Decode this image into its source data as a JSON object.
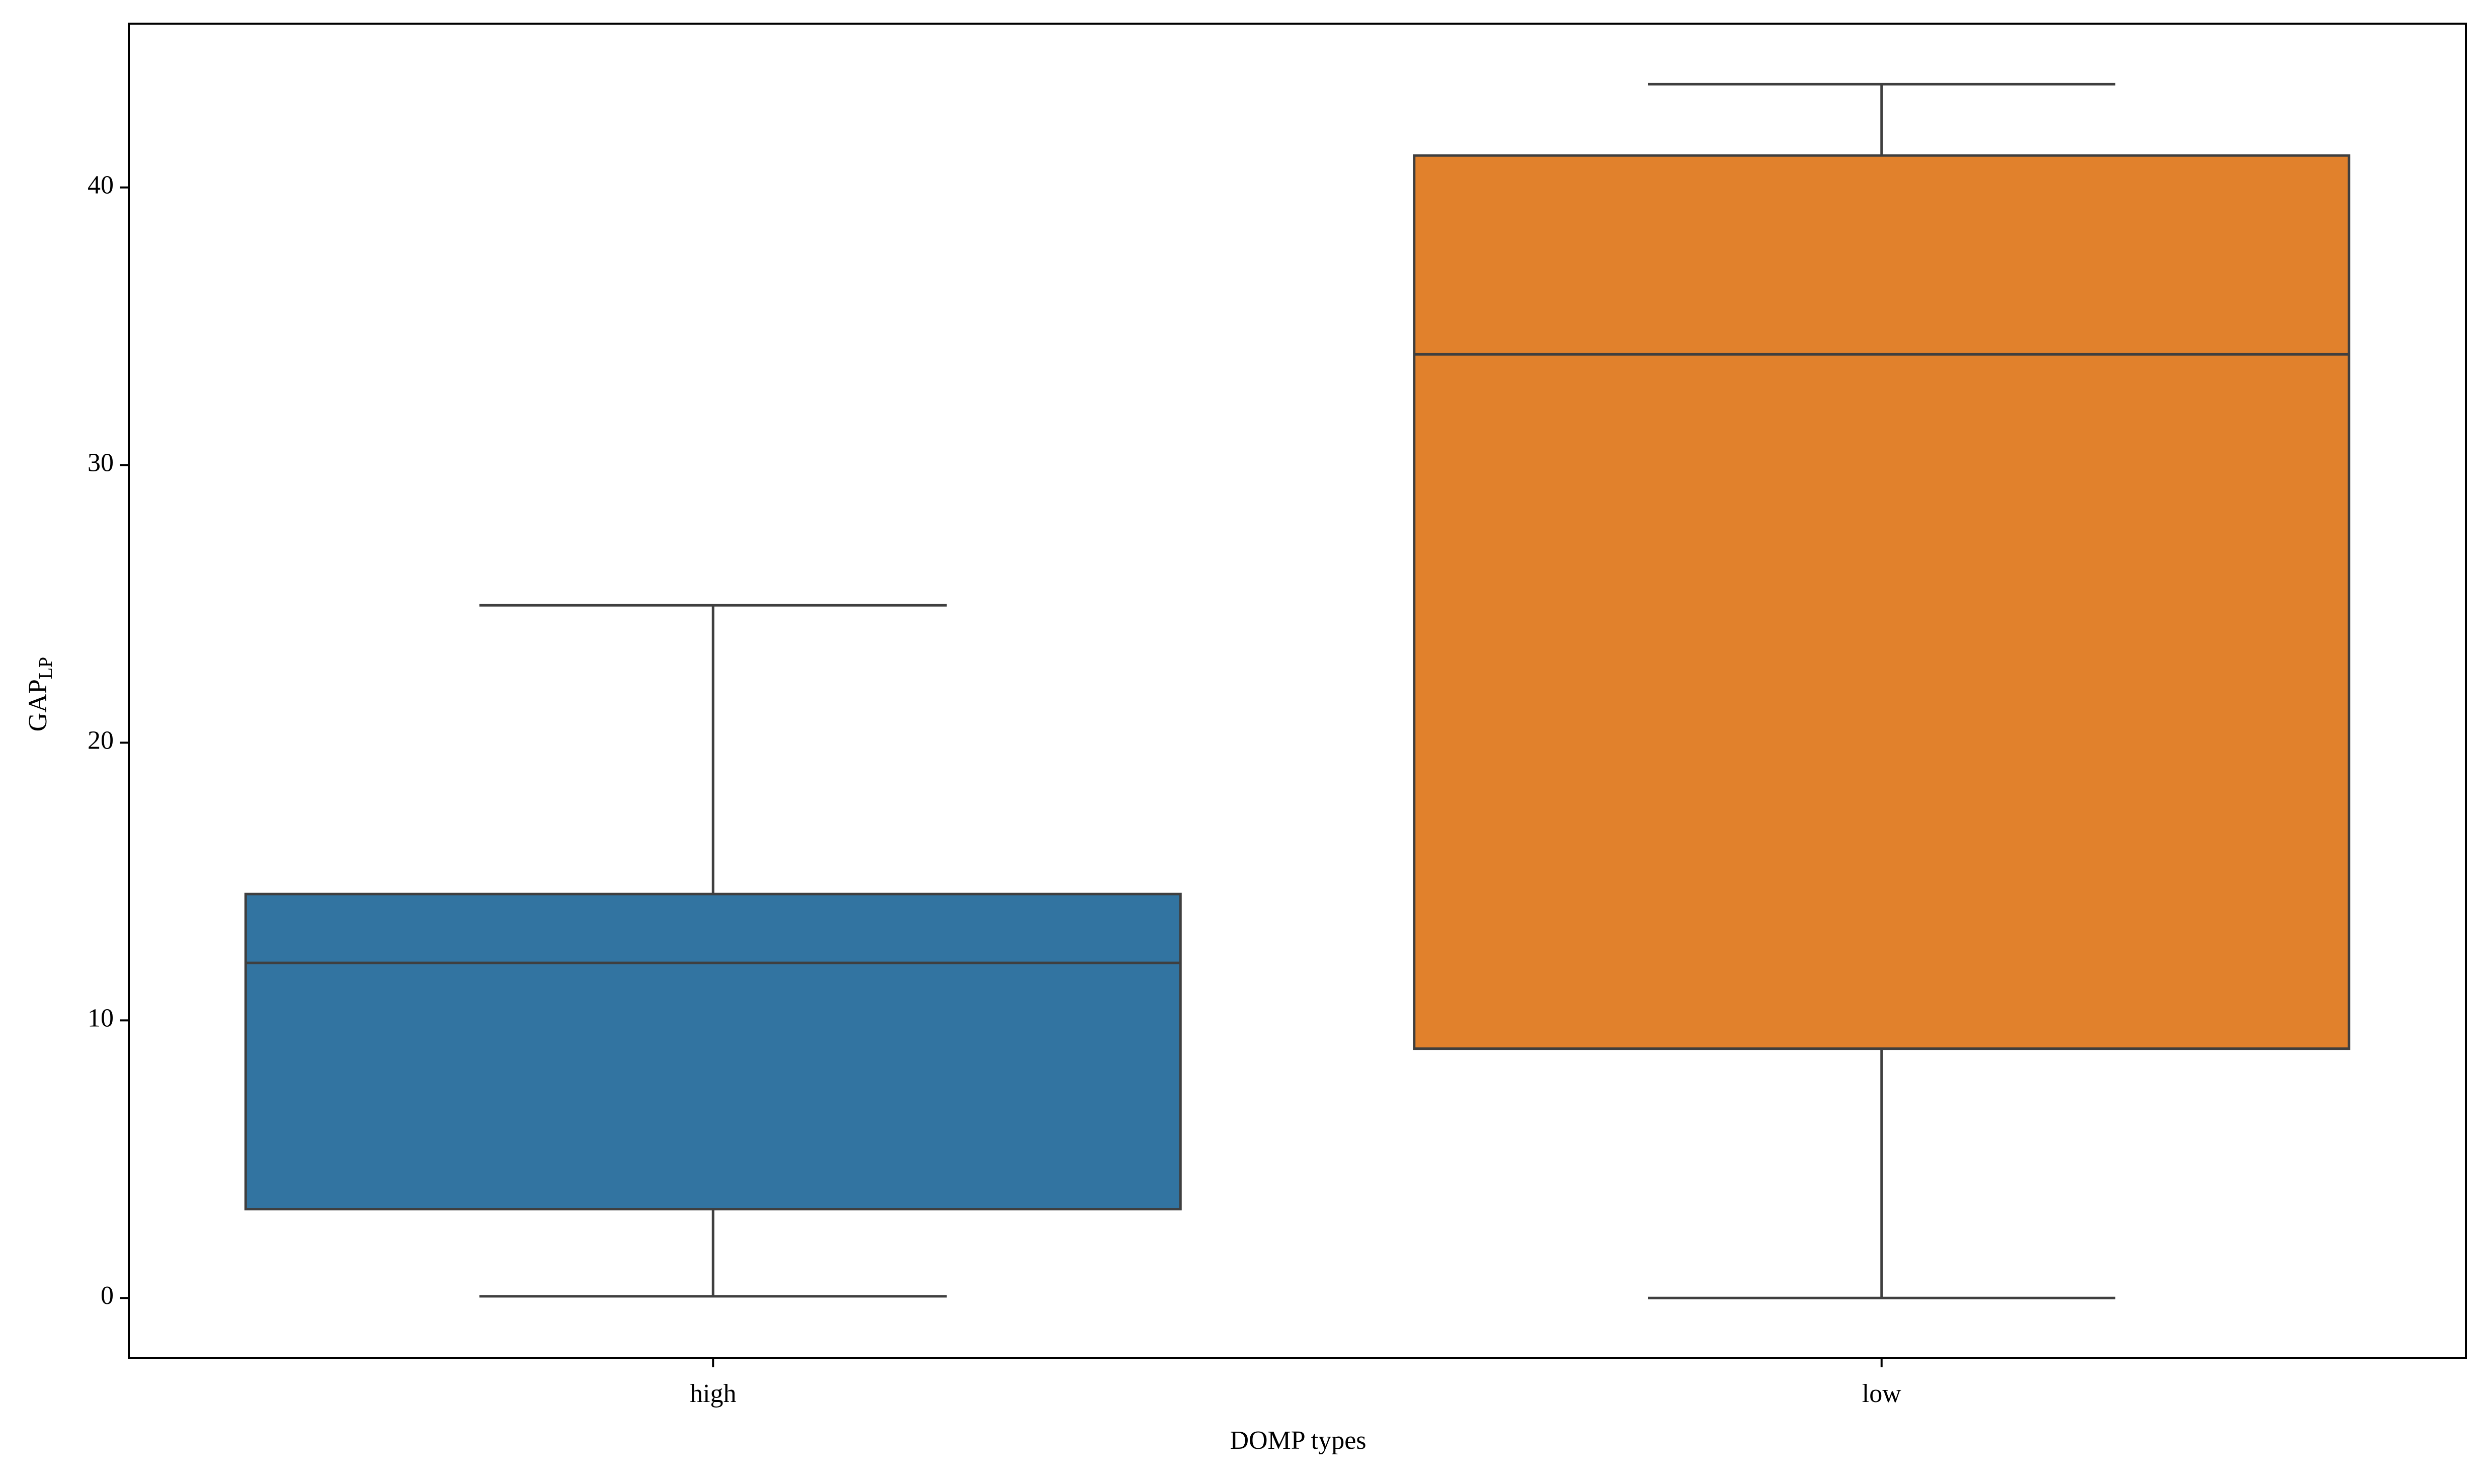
{
  "chart_data": {
    "type": "box",
    "x_label": "DOMP types",
    "y_label": {
      "text": "GAP",
      "subscript": "LP"
    },
    "categories": [
      "high",
      "low"
    ],
    "colors": [
      "#3274a1",
      "#e1812c"
    ],
    "boxes": [
      {
        "whislo": 0.06,
        "q1": 3.2,
        "med": 12.07,
        "q3": 14.55,
        "whishi": 24.95
      },
      {
        "whislo": 0,
        "q1": 8.98,
        "med": 33.99,
        "q3": 41.15,
        "whishi": 43.72
      }
    ],
    "ylim": [
      -2.17,
      45.9
    ],
    "yticks": [
      0,
      10,
      20,
      30,
      40
    ]
  }
}
